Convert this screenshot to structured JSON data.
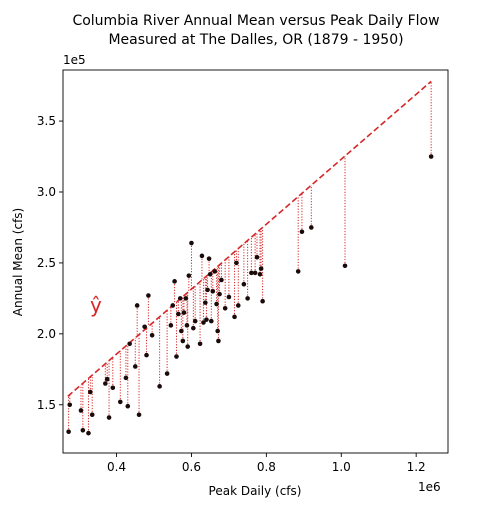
{
  "chart_data": {
    "type": "scatter",
    "title": "Columbia River Annual Mean versus Peak Daily Flow\nMeasured at The Dalles, OR (1879 - 1950)",
    "xlabel": "Peak Daily (cfs)",
    "ylabel": "Annual Mean (cfs)",
    "x_offset_label": "1e6",
    "y_offset_label": "1e5",
    "xlim": [
      0.257,
      1.285
    ],
    "ylim": [
      1.16,
      3.86
    ],
    "x_ticks": [
      0.4,
      0.6,
      0.8,
      1.0,
      1.2
    ],
    "x_tick_labels": [
      "0.4",
      "0.6",
      "0.8",
      "1.0",
      "1.2"
    ],
    "y_ticks": [
      1.5,
      2.0,
      2.5,
      3.0,
      3.5
    ],
    "y_tick_labels": [
      "1.5",
      "2.0",
      "2.5",
      "3.0",
      "3.5"
    ],
    "grid": false,
    "annotation": "ŷ",
    "fit_line": {
      "x": [
        0.27,
        1.24
      ],
      "y": [
        1.56,
        3.78
      ],
      "color": "#d62728"
    },
    "point_color": "#1a0a0a",
    "residual_color": "#d62728",
    "points": [
      [
        0.272,
        1.31
      ],
      [
        0.275,
        1.5
      ],
      [
        0.305,
        1.46
      ],
      [
        0.31,
        1.32
      ],
      [
        0.325,
        1.3
      ],
      [
        0.33,
        1.59
      ],
      [
        0.335,
        1.43
      ],
      [
        0.37,
        1.65
      ],
      [
        0.375,
        1.68
      ],
      [
        0.38,
        1.41
      ],
      [
        0.39,
        1.62
      ],
      [
        0.41,
        1.52
      ],
      [
        0.425,
        1.69
      ],
      [
        0.43,
        1.49
      ],
      [
        0.435,
        1.93
      ],
      [
        0.45,
        1.77
      ],
      [
        0.455,
        2.2
      ],
      [
        0.46,
        1.43
      ],
      [
        0.475,
        2.05
      ],
      [
        0.48,
        1.85
      ],
      [
        0.485,
        2.27
      ],
      [
        0.495,
        1.99
      ],
      [
        0.515,
        1.63
      ],
      [
        0.535,
        1.72
      ],
      [
        0.545,
        2.06
      ],
      [
        0.55,
        2.2
      ],
      [
        0.555,
        2.37
      ],
      [
        0.56,
        1.84
      ],
      [
        0.565,
        2.14
      ],
      [
        0.57,
        2.25
      ],
      [
        0.573,
        2.02
      ],
      [
        0.577,
        1.95
      ],
      [
        0.58,
        2.15
      ],
      [
        0.585,
        2.25
      ],
      [
        0.588,
        2.06
      ],
      [
        0.59,
        1.91
      ],
      [
        0.593,
        2.41
      ],
      [
        0.6,
        2.64
      ],
      [
        0.605,
        2.04
      ],
      [
        0.61,
        2.09
      ],
      [
        0.623,
        1.93
      ],
      [
        0.628,
        2.55
      ],
      [
        0.632,
        2.08
      ],
      [
        0.637,
        2.22
      ],
      [
        0.64,
        2.1
      ],
      [
        0.643,
        2.31
      ],
      [
        0.647,
        2.53
      ],
      [
        0.65,
        2.42
      ],
      [
        0.653,
        2.09
      ],
      [
        0.657,
        2.3
      ],
      [
        0.662,
        2.44
      ],
      [
        0.667,
        2.21
      ],
      [
        0.67,
        2.02
      ],
      [
        0.672,
        1.95
      ],
      [
        0.675,
        2.28
      ],
      [
        0.68,
        2.38
      ],
      [
        0.69,
        2.18
      ],
      [
        0.7,
        2.26
      ],
      [
        0.715,
        2.12
      ],
      [
        0.72,
        2.5
      ],
      [
        0.725,
        2.2
      ],
      [
        0.74,
        2.35
      ],
      [
        0.75,
        2.25
      ],
      [
        0.76,
        2.43
      ],
      [
        0.77,
        2.43
      ],
      [
        0.775,
        2.54
      ],
      [
        0.783,
        2.42
      ],
      [
        0.786,
        2.46
      ],
      [
        0.79,
        2.23
      ],
      [
        0.885,
        2.44
      ],
      [
        0.895,
        2.72
      ],
      [
        0.92,
        2.75
      ],
      [
        1.01,
        2.48
      ],
      [
        1.24,
        3.25
      ]
    ]
  }
}
